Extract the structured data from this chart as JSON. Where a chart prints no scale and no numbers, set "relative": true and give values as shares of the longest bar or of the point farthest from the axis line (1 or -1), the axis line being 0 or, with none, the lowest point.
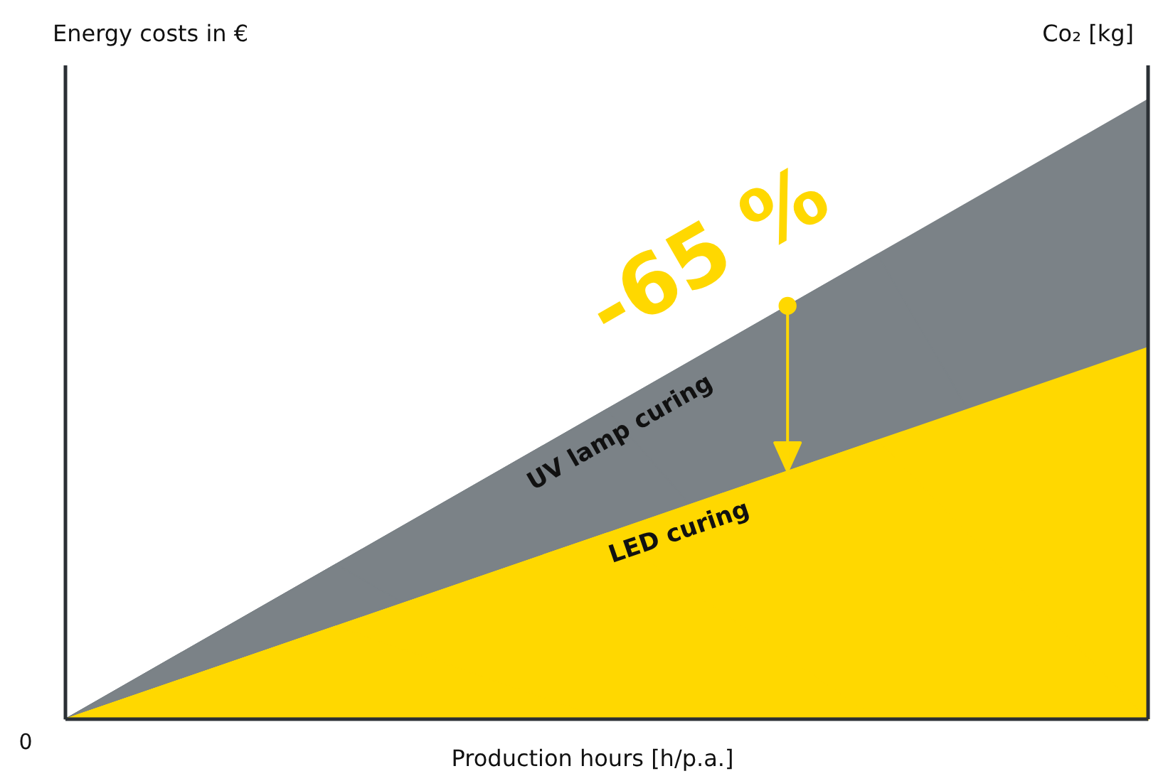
{
  "chart_data": {
    "type": "area",
    "relative": true,
    "xlabel": "Production hours [h/p.a.]",
    "ylabel": "Energy costs in €",
    "y2label": "Co₂ [kg]",
    "categories": [
      null,
      null,
      null,
      null,
      null
    ],
    "series": [
      {
        "name": "UV lamp curing",
        "color": "#7b8287",
        "values": [
          0,
          0.25,
          0.5,
          0.75,
          1
        ]
      },
      {
        "name": "LED curing",
        "color": "#ffd800",
        "values": [
          0,
          0.15,
          0.3,
          0.45,
          0.6
        ]
      }
    ],
    "annotations": [
      "-65 %",
      "0"
    ]
  }
}
